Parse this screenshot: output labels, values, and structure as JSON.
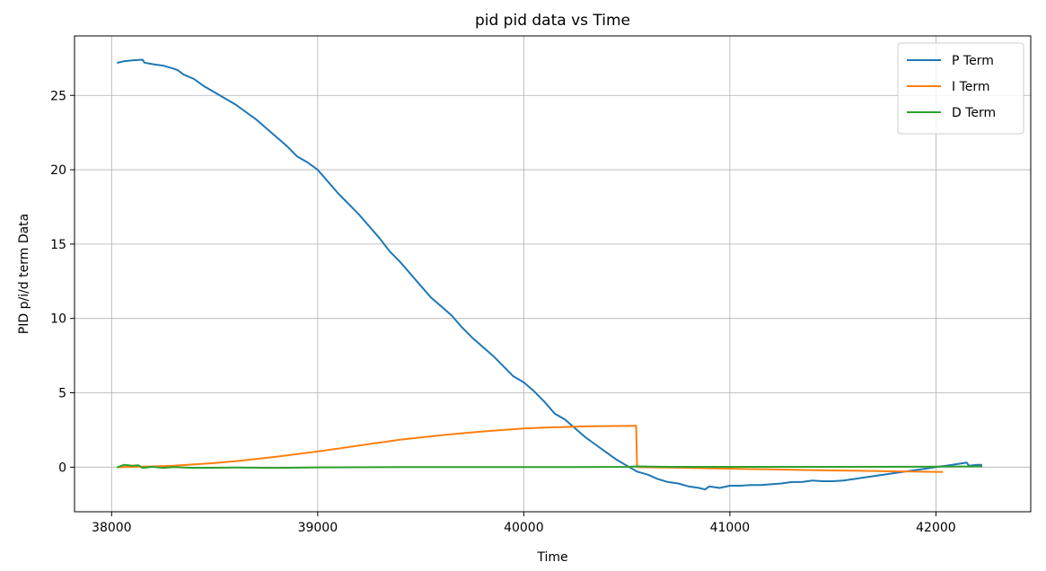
{
  "chart_data": {
    "type": "line",
    "title": "pid pid data vs Time",
    "xlabel": "Time",
    "ylabel": "PID p/i/d term Data",
    "xlim": [
      37820,
      42460
    ],
    "ylim": [
      -3,
      29
    ],
    "xticks": [
      38000,
      39000,
      40000,
      41000,
      42000
    ],
    "yticks": [
      0,
      5,
      10,
      15,
      20,
      25
    ],
    "grid": true,
    "legend_position": "top-right",
    "series": [
      {
        "name": "P Term",
        "color": "#1f77b4",
        "x": [
          38030,
          38060,
          38100,
          38150,
          38160,
          38200,
          38250,
          38300,
          38320,
          38350,
          38400,
          38450,
          38500,
          38550,
          38600,
          38650,
          38700,
          38750,
          38800,
          38850,
          38900,
          38950,
          39000,
          39050,
          39100,
          39150,
          39200,
          39250,
          39300,
          39350,
          39400,
          39450,
          39500,
          39550,
          39600,
          39650,
          39700,
          39750,
          39800,
          39850,
          39900,
          39950,
          40000,
          40050,
          40100,
          40150,
          40200,
          40250,
          40300,
          40350,
          40400,
          40450,
          40500,
          40550,
          40600,
          40650,
          40700,
          40750,
          40800,
          40850,
          40880,
          40900,
          40950,
          41000,
          41050,
          41100,
          41150,
          41200,
          41250,
          41300,
          41350,
          41400,
          41450,
          41500,
          41550,
          41600,
          41650,
          41700,
          41750,
          41800,
          41850,
          41900,
          41950,
          42000,
          42050,
          42100,
          42150,
          42160,
          42200,
          42220
        ],
        "y": [
          27.2,
          27.3,
          27.35,
          27.4,
          27.2,
          27.1,
          27.0,
          26.8,
          26.7,
          26.4,
          26.1,
          25.6,
          25.2,
          24.8,
          24.4,
          23.9,
          23.4,
          22.8,
          22.2,
          21.6,
          20.9,
          20.5,
          20.0,
          19.2,
          18.4,
          17.7,
          17.0,
          16.2,
          15.4,
          14.5,
          13.8,
          13.0,
          12.2,
          11.4,
          10.8,
          10.2,
          9.4,
          8.7,
          8.1,
          7.5,
          6.8,
          6.1,
          5.7,
          5.1,
          4.4,
          3.6,
          3.2,
          2.6,
          2.0,
          1.5,
          1.0,
          0.5,
          0.1,
          -0.3,
          -0.5,
          -0.8,
          -1.0,
          -1.1,
          -1.3,
          -1.4,
          -1.5,
          -1.3,
          -1.4,
          -1.25,
          -1.25,
          -1.2,
          -1.2,
          -1.15,
          -1.1,
          -1.0,
          -1.0,
          -0.9,
          -0.95,
          -0.95,
          -0.9,
          -0.8,
          -0.7,
          -0.6,
          -0.5,
          -0.4,
          -0.3,
          -0.2,
          -0.1,
          0.0,
          0.1,
          0.2,
          0.3,
          0.1,
          0.15,
          0.15
        ]
      },
      {
        "name": "I Term",
        "color": "#ff7f0e",
        "x": [
          38030,
          38100,
          38200,
          38300,
          38400,
          38500,
          38600,
          38700,
          38800,
          38900,
          39000,
          39100,
          39200,
          39300,
          39400,
          39500,
          39600,
          39700,
          39800,
          39900,
          40000,
          40100,
          40200,
          40300,
          40400,
          40500,
          40545,
          40550,
          40600,
          40700,
          40800,
          40900,
          41000,
          41100,
          41200,
          41300,
          41400,
          41500,
          41600,
          41700,
          41800,
          41900,
          42000,
          42030
        ],
        "y": [
          0.0,
          0.02,
          0.05,
          0.1,
          0.18,
          0.28,
          0.4,
          0.55,
          0.7,
          0.88,
          1.05,
          1.25,
          1.45,
          1.65,
          1.85,
          2.0,
          2.15,
          2.28,
          2.4,
          2.5,
          2.6,
          2.66,
          2.7,
          2.74,
          2.76,
          2.77,
          2.78,
          0.0,
          -0.01,
          -0.03,
          -0.05,
          -0.08,
          -0.1,
          -0.13,
          -0.15,
          -0.18,
          -0.2,
          -0.22,
          -0.24,
          -0.26,
          -0.28,
          -0.3,
          -0.32,
          -0.32
        ]
      },
      {
        "name": "D Term",
        "color": "#2ca02c",
        "x": [
          38030,
          38060,
          38100,
          38130,
          38150,
          38200,
          38250,
          38300,
          38400,
          38600,
          38800,
          39000,
          39400,
          39800,
          40200,
          40500,
          40550,
          40700,
          41000,
          41500,
          42000,
          42220
        ],
        "y": [
          0.0,
          0.15,
          0.1,
          0.12,
          -0.05,
          0.02,
          -0.05,
          0.0,
          -0.05,
          -0.03,
          -0.05,
          -0.02,
          0.0,
          0.0,
          0.0,
          0.02,
          0.05,
          0.02,
          0.02,
          0.02,
          0.03,
          0.05
        ]
      }
    ]
  }
}
